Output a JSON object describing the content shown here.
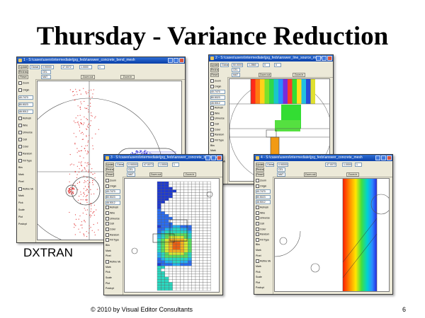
{
  "slide": {
    "title": "Thursday - Variance Reduction",
    "caption": "DXTRAN",
    "footer": "© 2010 by Visual Editor Consultants",
    "page_number": "6"
  },
  "windows": [
    {
      "id": "w1",
      "title": "1 - S:\\cases\\users\\intermediate\\jpg_feds\\answer_concrete_bend_mesh",
      "toolbar": {
        "update": "Update",
        "global": "Global",
        "redraw": "Redraw",
        "reset": "Reset",
        "color_by": "Color By",
        "label": "Label",
        "zoom_out": "Zoom out",
        "zoom_in": "Zoom in",
        "v1": "0.90000",
        "v2": "47.0072",
        "v3": "1.0000",
        "v4": "1",
        "v5": "CEL",
        "v6": "MAT",
        "v7": "XY"
      },
      "sidebar": [
        "Zoom",
        "Origin",
        "40.7470",
        "80.5023",
        "46.5012",
        "Refresh",
        "Wire",
        "Universe",
        "Cell",
        "Color",
        "Random",
        "Fill Type",
        "Bks",
        "Mark",
        "Pixel",
        "Refine Mesh",
        "Mark",
        "Pick",
        "Scale",
        "Plot",
        "Postcpt"
      ]
    },
    {
      "id": "w2",
      "title": "2 - S:\\cases\\users\\intermediate\\jpg_feds\\answer_line_source_mesh",
      "toolbar": {
        "update": "Update",
        "global": "Global",
        "redraw": "Redraw",
        "reset": "Reset",
        "color_by": "Color By",
        "label": "Label",
        "zoom_out": "Zoom out",
        "zoom_in": "Zoom in",
        "v1": "50.0000",
        "v2": "1.2860",
        "v3": "0",
        "v4": "0",
        "v5": "CEL",
        "v6": "MAT",
        "v7": "XY"
      },
      "sidebar": [
        "Zoom",
        "Origin",
        "40.7470",
        "80.5023",
        "46.5012",
        "Refresh",
        "Wire",
        "Universe",
        "Cell",
        "Color",
        "Random",
        "Fill Type",
        "Bks",
        "Mark",
        "Pixel",
        "Refine Mesh",
        "Mark",
        "Pick",
        "Scale"
      ]
    },
    {
      "id": "w3",
      "title": "3 - S:\\cases\\users\\intermediate\\jpg_feds\\answer_concrete_bend_mesh",
      "toolbar": {
        "update": "Update",
        "global": "Global",
        "redraw": "Redraw",
        "reset": "Reset",
        "color_by": "Color By",
        "label": "Label",
        "zoom_out": "Zoom out",
        "zoom_in": "Zoom in",
        "v1": "0.90000",
        "v2": "47.0072",
        "v3": "1.0000",
        "v4": "1",
        "v5": "CEL",
        "v6": "MAT",
        "v7": "XY"
      },
      "sidebar": [
        "Zoom",
        "Origin",
        "40.7470",
        "80.5023",
        "46.5012",
        "Refresh",
        "Wire",
        "Universe",
        "Cell",
        "Color",
        "Random",
        "Fill Type",
        "Bks",
        "Mark",
        "Pixel",
        "Refine Mesh",
        "Mark",
        "Pick",
        "Scale",
        "Plot",
        "Postcpt"
      ]
    },
    {
      "id": "w4",
      "title": "4 - S:\\cases\\users\\intermediate\\jpg_feds\\answer_concrete_mesh",
      "toolbar": {
        "update": "Update",
        "global": "Global",
        "redraw": "Redraw",
        "reset": "Reset",
        "color_by": "Color By",
        "label": "Label",
        "zoom_out": "Zoom out",
        "zoom_in": "Zoom in",
        "v1": "0.90000",
        "v2": "47.0072",
        "v3": "1.0000",
        "v4": "1",
        "v5": "CEL",
        "v6": "MAT",
        "v7": "XY"
      },
      "sidebar": [
        "Zoom",
        "Origin",
        "40.7470",
        "80.5023",
        "46.5012",
        "Refresh",
        "Wire",
        "Universe",
        "Cell",
        "Color",
        "Random",
        "Fill Type",
        "Bks",
        "Mark",
        "Pixel",
        "Refine Mesh",
        "Mark",
        "Pick",
        "Scale",
        "Plot",
        "Postcpt"
      ]
    }
  ],
  "colors": {
    "titlebar": "#0a3fa8",
    "window_bg": "#ece9d8",
    "particle_red": "#e23b3b",
    "particle_blue": "#2a2ad8",
    "mesh_orange": "#f0a020",
    "mesh_red": "#e03010"
  }
}
